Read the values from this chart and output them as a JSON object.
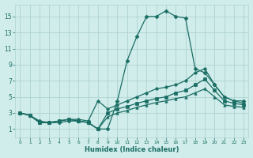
{
  "xlabel": "Humidex (Indice chaleur)",
  "background_color": "#d0eceb",
  "grid_color": "#aed4d0",
  "line_color": "#1a6e64",
  "xlim": [
    -0.5,
    23.5
  ],
  "ylim": [
    0,
    16.5
  ],
  "xticks": [
    0,
    1,
    2,
    3,
    4,
    5,
    6,
    7,
    8,
    9,
    10,
    11,
    12,
    13,
    14,
    15,
    16,
    17,
    18,
    19,
    20,
    21,
    22,
    23
  ],
  "yticks": [
    1,
    3,
    5,
    7,
    9,
    11,
    13,
    15
  ],
  "lines": [
    {
      "x": [
        0,
        1,
        2,
        3,
        4,
        5,
        6,
        7,
        8,
        9,
        10,
        11,
        12,
        13,
        14,
        15,
        16,
        17,
        18,
        19,
        20,
        21,
        22,
        23
      ],
      "y": [
        3,
        2.7,
        2.0,
        1.8,
        1.8,
        2.0,
        2.0,
        1.8,
        1.0,
        1.0,
        4.5,
        9.5,
        12.5,
        15.0,
        15.0,
        15.7,
        15.0,
        14.8,
        8.5,
        8.0,
        6.5,
        5.0,
        4.5,
        4.5
      ]
    },
    {
      "x": [
        0,
        1,
        2,
        3,
        4,
        5,
        6,
        7,
        8,
        9,
        10,
        11,
        12,
        13,
        14,
        15,
        16,
        17,
        18,
        19,
        20,
        21,
        22,
        23
      ],
      "y": [
        3,
        2.7,
        1.8,
        1.8,
        2.0,
        2.2,
        2.2,
        2.0,
        4.5,
        3.5,
        4.0,
        4.5,
        5.0,
        5.5,
        6.0,
        6.2,
        6.5,
        7.0,
        8.0,
        8.5,
        6.5,
        5.0,
        4.5,
        4.2
      ]
    },
    {
      "x": [
        0,
        1,
        2,
        3,
        4,
        5,
        6,
        7,
        8,
        9,
        10,
        11,
        12,
        13,
        14,
        15,
        16,
        17,
        18,
        19,
        20,
        21,
        22,
        23
      ],
      "y": [
        3,
        2.7,
        1.8,
        1.8,
        2.0,
        2.2,
        2.0,
        1.8,
        1.0,
        3.0,
        3.5,
        3.8,
        4.2,
        4.5,
        4.8,
        5.0,
        5.5,
        5.8,
        6.5,
        7.2,
        5.8,
        4.5,
        4.2,
        4.0
      ]
    },
    {
      "x": [
        0,
        1,
        2,
        3,
        4,
        5,
        6,
        7,
        8,
        9,
        10,
        11,
        12,
        13,
        14,
        15,
        16,
        17,
        18,
        19,
        20,
        21,
        22,
        23
      ],
      "y": [
        3,
        2.7,
        1.8,
        1.8,
        2.0,
        2.2,
        2.0,
        1.8,
        1.0,
        2.5,
        3.0,
        3.3,
        3.7,
        4.0,
        4.3,
        4.5,
        4.8,
        5.0,
        5.5,
        6.0,
        5.0,
        4.0,
        3.8,
        3.7
      ]
    }
  ]
}
